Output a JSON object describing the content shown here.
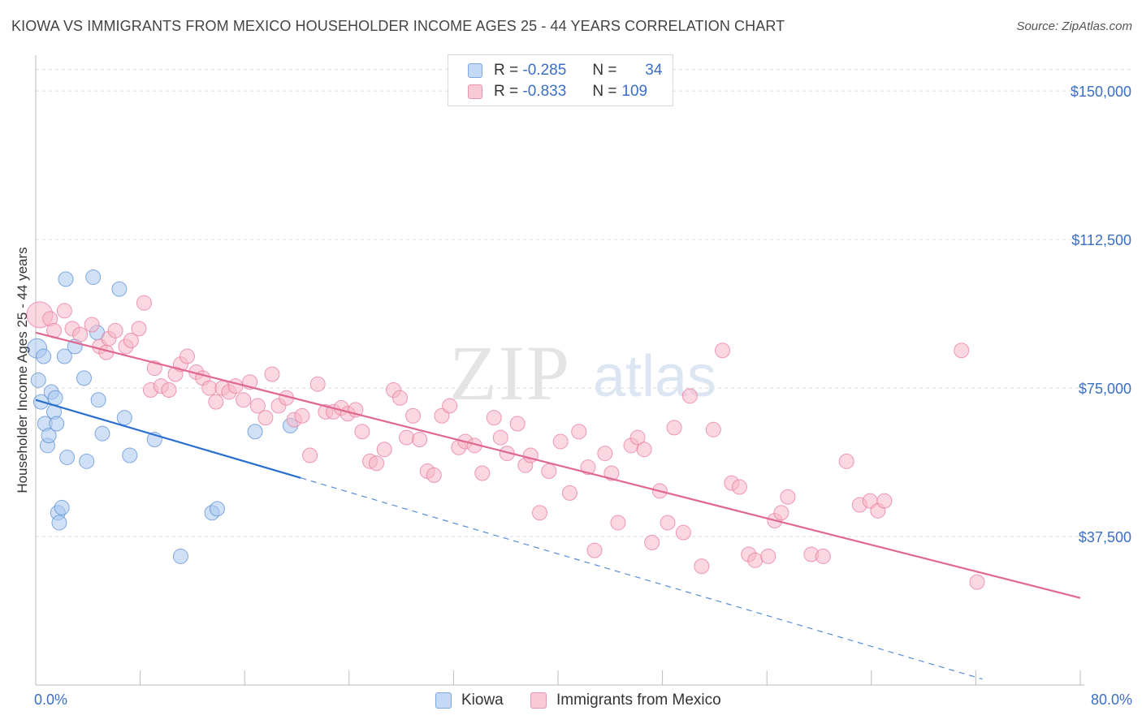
{
  "title": "KIOWA VS IMMIGRANTS FROM MEXICO HOUSEHOLDER INCOME AGES 25 - 44 YEARS CORRELATION CHART",
  "source": "Source: ZipAtlas.com",
  "watermark": {
    "zip": "ZIP",
    "atlas": "atlas"
  },
  "legend": {
    "rows": [
      {
        "r_label": "R =",
        "r_value": "-0.285",
        "n_label": "N =",
        "n_value": "34",
        "color": "#a9c8f0"
      },
      {
        "r_label": "R =",
        "r_value": "-0.833",
        "n_label": "N =",
        "n_value": "109",
        "color": "#f5b6c9"
      }
    ]
  },
  "bottom_legend": [
    "Kiowa",
    "Immigrants from Mexico"
  ],
  "x_axis": {
    "min_label": "0.0%",
    "max_label": "80.0%"
  },
  "chart_data": {
    "type": "scatter",
    "title": "KIOWA VS IMMIGRANTS FROM MEXICO HOUSEHOLDER INCOME AGES 25 - 44 YEARS CORRELATION CHART",
    "xlabel": "",
    "ylabel": "Householder Income Ages 25 - 44 years",
    "xlim": [
      0,
      80
    ],
    "ylim": [
      0,
      157000
    ],
    "y_ticks": [
      37500,
      75000,
      112500,
      150000
    ],
    "y_tick_labels": [
      "$37,500",
      "$75,000",
      "$112,500",
      "$150,000"
    ],
    "grid": true,
    "legend_position": "top-center",
    "series": [
      {
        "name": "Kiowa",
        "color": "#5b8fd6",
        "fill": "#a9c8f0",
        "trend_color": "#2a6fd0",
        "trend": {
          "x0": 0,
          "y0": 72000,
          "x1": 20.3,
          "y1": 52300,
          "dash_to_x": 72.5,
          "dash_to_y": 1500
        },
        "points": [
          [
            0.1,
            85000,
            14
          ],
          [
            0.2,
            77000,
            11
          ],
          [
            0.4,
            71500,
            11
          ],
          [
            0.6,
            83000,
            11
          ],
          [
            0.7,
            66000,
            11
          ],
          [
            0.9,
            60500,
            11
          ],
          [
            1.0,
            63000,
            11
          ],
          [
            1.2,
            74000,
            11
          ],
          [
            1.4,
            69000,
            11
          ],
          [
            1.5,
            72500,
            11
          ],
          [
            1.6,
            66000,
            11
          ],
          [
            1.7,
            43500,
            11
          ],
          [
            1.8,
            41000,
            11
          ],
          [
            2.0,
            44800,
            11
          ],
          [
            2.2,
            83000,
            11
          ],
          [
            2.3,
            102500,
            11
          ],
          [
            2.4,
            57500,
            11
          ],
          [
            3.0,
            85500,
            11
          ],
          [
            3.7,
            77500,
            11
          ],
          [
            3.9,
            56500,
            11
          ],
          [
            4.4,
            103000,
            11
          ],
          [
            4.7,
            89000,
            11
          ],
          [
            4.8,
            72000,
            11
          ],
          [
            5.1,
            63500,
            11
          ],
          [
            6.4,
            100000,
            11
          ],
          [
            6.8,
            67500,
            11
          ],
          [
            7.2,
            58000,
            11
          ],
          [
            9.1,
            62000,
            11
          ],
          [
            11.1,
            32500,
            11
          ],
          [
            13.5,
            43500,
            11
          ],
          [
            13.9,
            44500,
            11
          ],
          [
            16.8,
            64000,
            11
          ],
          [
            19.5,
            65500,
            11
          ],
          [
            20.2,
            61500,
            0
          ]
        ]
      },
      {
        "name": "Immigrants from Mexico",
        "color": "#e8799c",
        "fill": "#f5b6c9",
        "trend_color": "#e06890",
        "trend": {
          "x0": 0,
          "y0": 89000,
          "x1": 80,
          "y1": 22000
        },
        "points": [
          [
            0.3,
            93500,
            18
          ],
          [
            1.1,
            92500,
            11
          ],
          [
            1.4,
            89500,
            11
          ],
          [
            2.2,
            94500,
            11
          ],
          [
            2.8,
            90000,
            11
          ],
          [
            3.4,
            88500,
            11
          ],
          [
            4.3,
            91000,
            11
          ],
          [
            4.9,
            85500,
            11
          ],
          [
            5.4,
            84000,
            11
          ],
          [
            5.6,
            87500,
            11
          ],
          [
            6.1,
            89500,
            11
          ],
          [
            6.9,
            85500,
            11
          ],
          [
            7.3,
            87000,
            11
          ],
          [
            7.9,
            90000,
            11
          ],
          [
            8.3,
            96500,
            11
          ],
          [
            8.8,
            74500,
            11
          ],
          [
            9.1,
            80000,
            11
          ],
          [
            9.6,
            75500,
            11
          ],
          [
            10.2,
            74500,
            11
          ],
          [
            10.7,
            78500,
            11
          ],
          [
            11.1,
            81000,
            11
          ],
          [
            11.6,
            83000,
            11
          ],
          [
            12.3,
            79000,
            11
          ],
          [
            12.8,
            77500,
            11
          ],
          [
            13.3,
            75000,
            11
          ],
          [
            13.8,
            71500,
            11
          ],
          [
            14.3,
            75000,
            11
          ],
          [
            14.8,
            74000,
            11
          ],
          [
            15.3,
            75500,
            11
          ],
          [
            15.9,
            72000,
            11
          ],
          [
            16.4,
            76500,
            11
          ],
          [
            17.0,
            70500,
            11
          ],
          [
            17.6,
            67500,
            11
          ],
          [
            18.1,
            78500,
            11
          ],
          [
            18.6,
            70500,
            11
          ],
          [
            19.2,
            72500,
            11
          ],
          [
            19.8,
            67000,
            11
          ],
          [
            20.4,
            68000,
            11
          ],
          [
            21.0,
            58000,
            11
          ],
          [
            21.6,
            76000,
            11
          ],
          [
            22.2,
            69000,
            11
          ],
          [
            22.8,
            69000,
            11
          ],
          [
            23.4,
            70000,
            11
          ],
          [
            23.9,
            68500,
            11
          ],
          [
            24.5,
            69500,
            11
          ],
          [
            25.0,
            64000,
            11
          ],
          [
            25.6,
            56500,
            11
          ],
          [
            26.1,
            56000,
            11
          ],
          [
            26.7,
            59500,
            11
          ],
          [
            27.4,
            74500,
            11
          ],
          [
            27.9,
            72500,
            11
          ],
          [
            28.4,
            62500,
            11
          ],
          [
            28.9,
            68000,
            11
          ],
          [
            29.4,
            62000,
            11
          ],
          [
            30.0,
            54000,
            11
          ],
          [
            30.5,
            53000,
            11
          ],
          [
            31.1,
            68000,
            11
          ],
          [
            31.7,
            70500,
            11
          ],
          [
            32.4,
            60000,
            11
          ],
          [
            32.9,
            61500,
            11
          ],
          [
            33.6,
            60500,
            11
          ],
          [
            34.2,
            53500,
            11
          ],
          [
            35.1,
            67500,
            11
          ],
          [
            35.6,
            62500,
            11
          ],
          [
            36.1,
            58500,
            11
          ],
          [
            36.9,
            66000,
            11
          ],
          [
            37.5,
            55500,
            11
          ],
          [
            37.9,
            58000,
            11
          ],
          [
            38.6,
            43500,
            11
          ],
          [
            39.3,
            54000,
            11
          ],
          [
            40.2,
            61500,
            11
          ],
          [
            40.9,
            48500,
            11
          ],
          [
            41.6,
            64000,
            11
          ],
          [
            42.3,
            55000,
            11
          ],
          [
            42.8,
            34000,
            11
          ],
          [
            43.6,
            58500,
            11
          ],
          [
            44.1,
            53500,
            11
          ],
          [
            44.6,
            41000,
            11
          ],
          [
            45.6,
            60500,
            11
          ],
          [
            46.1,
            62500,
            11
          ],
          [
            46.6,
            59500,
            11
          ],
          [
            47.2,
            36000,
            11
          ],
          [
            47.8,
            49000,
            11
          ],
          [
            48.4,
            41000,
            11
          ],
          [
            48.9,
            65000,
            11
          ],
          [
            49.6,
            38500,
            11
          ],
          [
            50.1,
            73000,
            11
          ],
          [
            51.0,
            30000,
            11
          ],
          [
            51.9,
            64500,
            11
          ],
          [
            52.6,
            84500,
            11
          ],
          [
            53.3,
            51000,
            11
          ],
          [
            53.9,
            50000,
            11
          ],
          [
            54.6,
            33000,
            11
          ],
          [
            55.1,
            31500,
            11
          ],
          [
            56.1,
            32500,
            11
          ],
          [
            56.6,
            41500,
            11
          ],
          [
            57.1,
            43500,
            11
          ],
          [
            57.6,
            47500,
            11
          ],
          [
            59.4,
            33000,
            11
          ],
          [
            60.3,
            32500,
            11
          ],
          [
            62.1,
            56500,
            11
          ],
          [
            63.1,
            45500,
            11
          ],
          [
            63.9,
            46500,
            11
          ],
          [
            64.5,
            44000,
            11
          ],
          [
            65.0,
            46500,
            11
          ],
          [
            70.9,
            84500,
            11
          ],
          [
            72.1,
            26000,
            11
          ],
          [
            61.0,
            48000,
            0
          ],
          [
            58.0,
            44000,
            0
          ]
        ]
      }
    ]
  }
}
